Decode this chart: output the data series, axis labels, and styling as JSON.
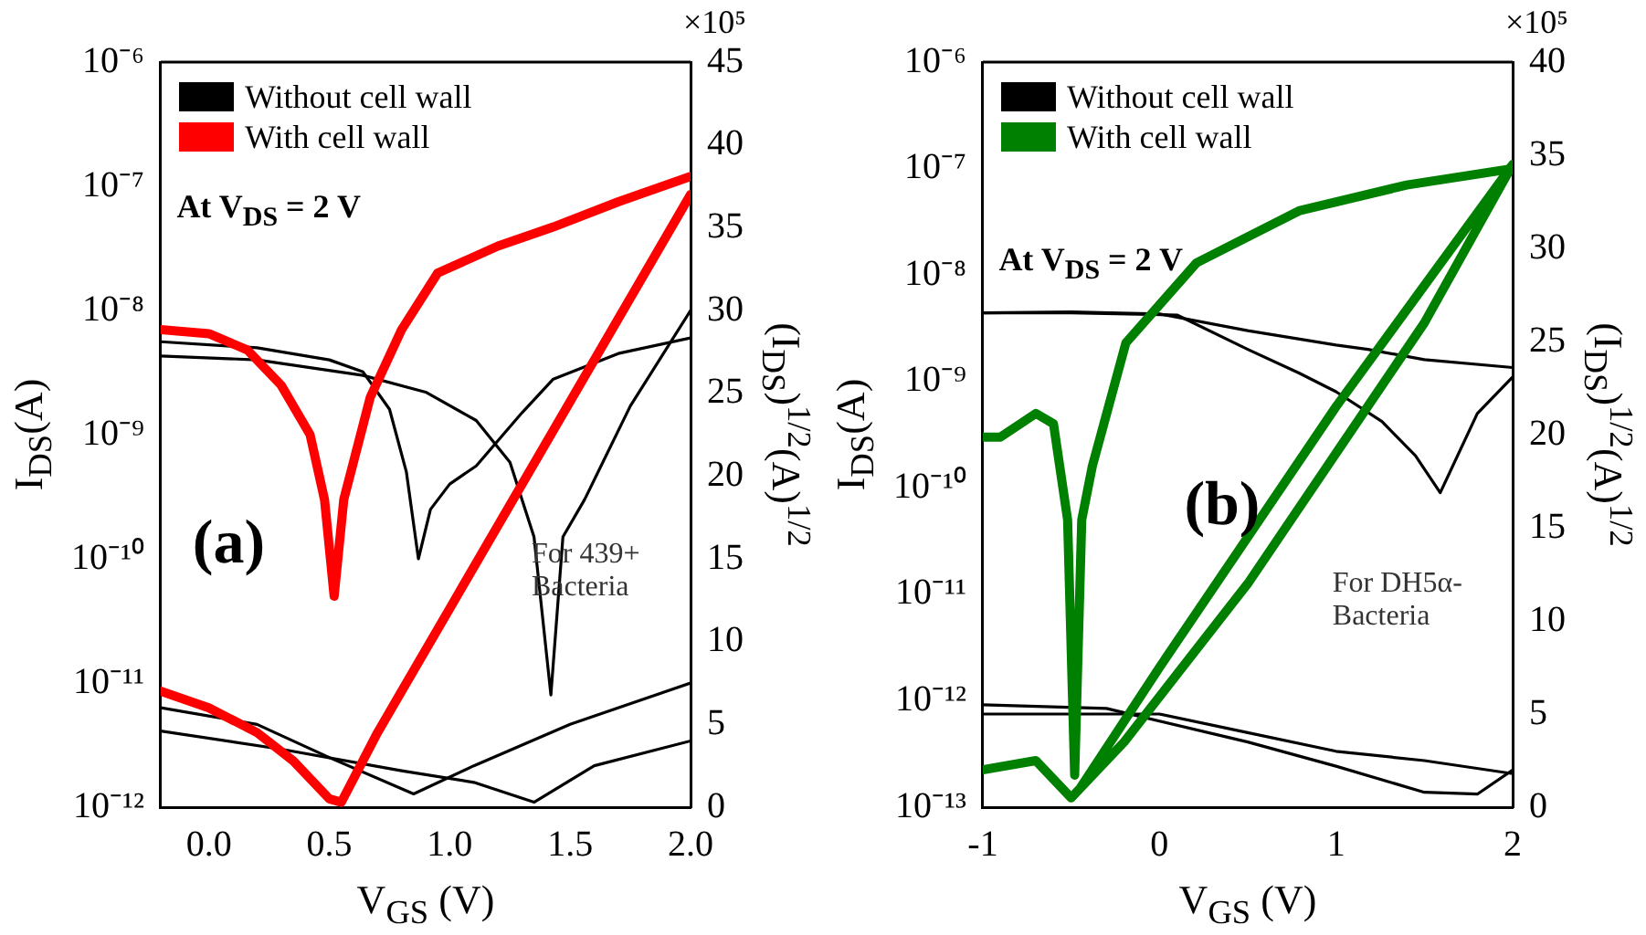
{
  "chart_data": [
    {
      "type": "line",
      "xlabel": "V$_{GS}$ (V)",
      "ylabel": "I$_{DS}$(A)",
      "y2label": "(I$_{DS}$)$^{1/2}$(A)$^{1/2}$",
      "log": "y",
      "marker": "none",
      "legend": "top left",
      "annotations": [
        "×10⁵",
        "At V$_{DS}$ = 2 V",
        "(a)",
        "For 439+ Bacteria"
      ],
      "xlim": [
        -0.2,
        2.0
      ],
      "xticks": [
        {
          "value": 0,
          "label": "0.0"
        },
        {
          "value": 0.5,
          "label": "0.5"
        },
        {
          "value": 1,
          "label": "1.0"
        },
        {
          "value": 1.5,
          "label": "1.5"
        },
        {
          "value": 2,
          "label": "2.0"
        }
      ],
      "ylim": [
        1e-12,
        1e-06
      ],
      "yticks": [
        {
          "value": 1e-12,
          "label": "10⁻¹²"
        },
        {
          "value": 1e-11,
          "label": "10⁻¹¹"
        },
        {
          "value": 1e-10,
          "label": "10⁻¹⁰"
        },
        {
          "value": 1e-09,
          "label": "10⁻⁹"
        },
        {
          "value": 1e-08,
          "label": "10⁻⁸"
        },
        {
          "value": 1e-07,
          "label": "10⁻⁷"
        },
        {
          "value": 1e-06,
          "label": "10⁻⁶"
        }
      ],
      "y2lim": [
        0,
        45
      ],
      "y2ticks": [
        0,
        5,
        10,
        15,
        20,
        25,
        30,
        35,
        40,
        45
      ],
      "series": [
        {
          "name": "Without cell wall",
          "color": "#000000",
          "x": [
            -0.2,
            0.2,
            0.5,
            0.64,
            0.75,
            0.82,
            0.87,
            0.92,
            1.0,
            1.11,
            1.3,
            1.43,
            1.7,
            2.0
          ],
          "values": [
            5.6e-09,
            5e-09,
            4e-09,
            3.2e-09,
            1.6e-09,
            5e-10,
            1e-10,
            2.5e-10,
            4e-10,
            5.6e-10,
            1.5e-09,
            2.8e-09,
            4.5e-09,
            6e-09
          ]
        },
        {
          "color": "#000000",
          "x": [
            -0.2,
            0.2,
            0.64,
            0.9,
            1.11,
            1.25,
            1.35,
            1.42,
            1.47,
            1.56,
            1.75,
            2.0
          ],
          "values": [
            4.3e-09,
            4e-09,
            3e-09,
            2.2e-09,
            1.3e-09,
            6e-10,
            1.5e-10,
            8e-12,
            1.5e-10,
            3e-10,
            1.7e-09,
            1e-08
          ]
        },
        {
          "color": "#000000",
          "axis": "y2",
          "x": [
            -0.2,
            0.2,
            0.5,
            0.85,
            1.1,
            1.5,
            2.0
          ],
          "values": [
            6,
            5,
            3,
            0.8,
            2.5,
            5,
            7.5
          ]
        },
        {
          "color": "#000000",
          "axis": "y2",
          "x": [
            -0.2,
            0.3,
            0.8,
            1.1,
            1.35,
            1.6,
            2.0
          ],
          "values": [
            4.6,
            3.5,
            2.2,
            1.5,
            0.3,
            2.5,
            4
          ]
        },
        {
          "name": "With cell wall",
          "color": "#ff0000",
          "x": [
            -0.2,
            0.0,
            0.16,
            0.3,
            0.42,
            0.48,
            0.52,
            0.56,
            0.67,
            0.8,
            0.95,
            1.2,
            1.43,
            1.7,
            2.0
          ],
          "values": [
            7e-09,
            6.5e-09,
            4.8e-09,
            2.5e-09,
            1e-09,
            3e-10,
            5e-11,
            3e-10,
            2e-09,
            7e-09,
            2e-08,
            3.3e-08,
            4.7e-08,
            7.5e-08,
            1.2e-07
          ]
        },
        {
          "color": "#ff0000",
          "axis": "y2",
          "x": [
            -0.2,
            0.0,
            0.2,
            0.35,
            0.5,
            0.55,
            0.7,
            1.0,
            1.5,
            2.0
          ],
          "values": [
            7,
            6,
            4.5,
            2.8,
            0.5,
            0.3,
            4.5,
            12,
            24.5,
            37
          ]
        }
      ]
    },
    {
      "type": "line",
      "xlabel": "V$_{GS}$ (V)",
      "ylabel": "I$_{DS}$(A)",
      "y2label": "(I$_{DS}$)$^{1/2}$(A)$^{1/2}$",
      "log": "y",
      "marker": "none",
      "legend": "top left",
      "annotations": [
        "×10⁵",
        "At V$_{DS}$ = 2 V",
        "(b)",
        "For DH5α- Bacteria"
      ],
      "xlim": [
        -1,
        2
      ],
      "xticks": [
        -1,
        0,
        1,
        2
      ],
      "ylim": [
        1e-13,
        1e-06
      ],
      "yticks": [
        {
          "value": 1e-13,
          "label": "10⁻¹³"
        },
        {
          "value": 1e-12,
          "label": "10⁻¹²"
        },
        {
          "value": 1e-11,
          "label": "10⁻¹¹"
        },
        {
          "value": 1e-10,
          "label": "10⁻¹⁰"
        },
        {
          "value": 1e-09,
          "label": "10⁻⁹"
        },
        {
          "value": 1e-08,
          "label": "10⁻⁸"
        },
        {
          "value": 1e-07,
          "label": "10⁻⁷"
        },
        {
          "value": 1e-06,
          "label": "10⁻⁶"
        }
      ],
      "y2lim": [
        0,
        40
      ],
      "y2ticks": [
        0,
        5,
        10,
        15,
        20,
        25,
        30,
        35,
        40
      ],
      "series": [
        {
          "name": "Without cell wall",
          "color": "#000000",
          "x": [
            -1,
            -0.5,
            0,
            0.5,
            1.0,
            1.18,
            1.5,
            2.0
          ],
          "values": [
            4.4e-09,
            4.5e-09,
            4.3e-09,
            3e-09,
            2.2e-09,
            2e-09,
            1.6e-09,
            1.35e-09
          ]
        },
        {
          "color": "#000000",
          "x": [
            -1,
            -0.5,
            0.1,
            0.5,
            0.79,
            1.0,
            1.26,
            1.45,
            1.59,
            1.8,
            2.0
          ],
          "values": [
            4.4e-09,
            4.4e-09,
            4.2e-09,
            2e-09,
            1.2e-09,
            8e-10,
            4.2e-10,
            2e-10,
            9e-11,
            5e-10,
            1.1e-09
          ]
        },
        {
          "color": "#000000",
          "axis": "y2",
          "x": [
            -1,
            0,
            0.5,
            1.0,
            1.5,
            2.0
          ],
          "values": [
            5,
            5,
            4,
            3,
            2.5,
            1.8
          ]
        },
        {
          "color": "#000000",
          "axis": "y2",
          "x": [
            -1,
            -0.3,
            0.5,
            1.0,
            1.5,
            1.8,
            2.0
          ],
          "values": [
            5.5,
            5.3,
            3.5,
            2.2,
            0.8,
            0.7,
            2
          ]
        },
        {
          "name": "With cell wall",
          "color": "#008000",
          "x": [
            -1,
            -0.9,
            -0.7,
            -0.6,
            -0.52,
            -0.48,
            -0.44,
            -0.38,
            -0.19,
            0.21,
            0.79,
            1.4,
            2.0
          ],
          "values": [
            3e-10,
            3e-10,
            5e-10,
            4e-10,
            5e-11,
            2e-13,
            5e-11,
            1.6e-10,
            2.3e-09,
            1.3e-08,
            4e-08,
            7e-08,
            1e-07
          ]
        },
        {
          "color": "#008000",
          "axis": "y2",
          "x": [
            -1,
            -0.7,
            -0.5,
            -0.2,
            0.5,
            1.0,
            1.5,
            2.0,
            1.5,
            1.0,
            0.5,
            0.0,
            -0.45
          ],
          "values": [
            2,
            2.5,
            0.5,
            3.5,
            12,
            19,
            26,
            34.5,
            28,
            21.5,
            14.5,
            7.5,
            1
          ]
        }
      ]
    }
  ]
}
